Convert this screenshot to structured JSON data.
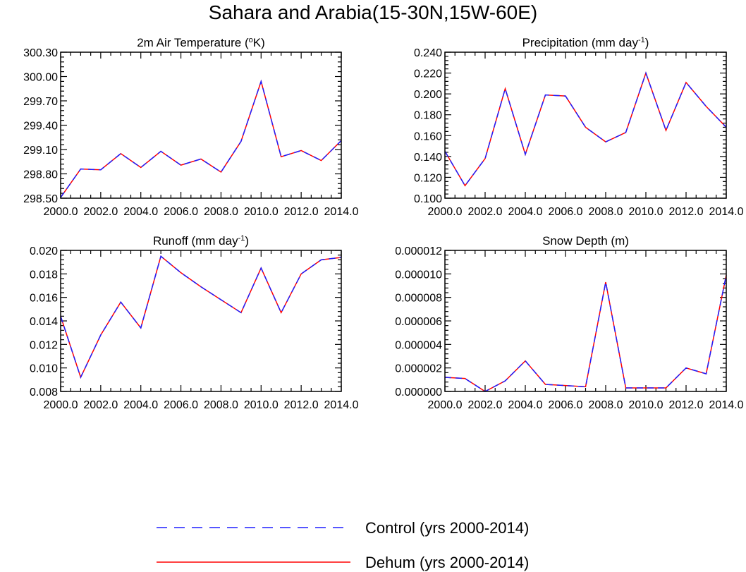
{
  "figure_title": "Sahara and Arabia(15-30N,15W-60E)",
  "legend": [
    {
      "label": "Control (yrs 2000-2014)",
      "color": "#1e1eff",
      "style": "dashed"
    },
    {
      "label": "Dehum (yrs 2000-2014)",
      "color": "#ff0000",
      "style": "solid"
    }
  ],
  "chart_data": [
    {
      "type": "line",
      "title": "2m Air Temperature (oK)",
      "title_parts": {
        "pre": "2m Air Temperature (",
        "sup": "o",
        "post": "K)"
      },
      "x": [
        2000,
        2001,
        2002,
        2003,
        2004,
        2005,
        2006,
        2007,
        2008,
        2009,
        2010,
        2011,
        2012,
        2013,
        2014
      ],
      "xlim": [
        2000,
        2014
      ],
      "xticks": [
        "2000.0",
        "2002.0",
        "2004.0",
        "2006.0",
        "2008.0",
        "2010.0",
        "2012.0",
        "2014.0"
      ],
      "ylim": [
        298.5,
        300.4
      ],
      "yticks": [
        "298.50",
        "298.80",
        "299.10",
        "299.40",
        "299.70",
        "300.00",
        "300.30"
      ],
      "series": [
        {
          "name": "Control (yrs 2000-2014)",
          "values": [
            298.51,
            298.88,
            298.87,
            299.08,
            298.9,
            299.11,
            298.93,
            299.01,
            298.84,
            299.24,
            300.02,
            299.04,
            299.12,
            298.99,
            299.25
          ]
        },
        {
          "name": "Dehum (yrs 2000-2014)",
          "values": [
            298.51,
            298.88,
            298.87,
            299.08,
            298.9,
            299.11,
            298.93,
            299.01,
            298.84,
            299.24,
            300.02,
            299.04,
            299.12,
            298.99,
            299.25
          ]
        }
      ]
    },
    {
      "type": "line",
      "title": "Precipitation (mm day-1)",
      "title_parts": {
        "pre": "Precipitation (mm day",
        "sup": "-1",
        "post": ")"
      },
      "x": [
        2000,
        2001,
        2002,
        2003,
        2004,
        2005,
        2006,
        2007,
        2008,
        2009,
        2010,
        2011,
        2012,
        2013,
        2014
      ],
      "xlim": [
        2000,
        2014
      ],
      "xticks": [
        "2000.0",
        "2002.0",
        "2004.0",
        "2006.0",
        "2008.0",
        "2010.0",
        "2012.0",
        "2014.0"
      ],
      "ylim": [
        0.1,
        0.24
      ],
      "yticks": [
        "0.100",
        "0.120",
        "0.140",
        "0.160",
        "0.180",
        "0.200",
        "0.220",
        "0.240"
      ],
      "series": [
        {
          "name": "Control (yrs 2000-2014)",
          "values": [
            0.145,
            0.112,
            0.138,
            0.205,
            0.142,
            0.199,
            0.198,
            0.168,
            0.154,
            0.163,
            0.22,
            0.165,
            0.211,
            0.188,
            0.168
          ]
        },
        {
          "name": "Dehum (yrs 2000-2014)",
          "values": [
            0.145,
            0.112,
            0.138,
            0.205,
            0.142,
            0.199,
            0.198,
            0.168,
            0.154,
            0.163,
            0.22,
            0.165,
            0.211,
            0.188,
            0.168
          ]
        }
      ]
    },
    {
      "type": "line",
      "title": "Runoff (mm day-1)",
      "title_parts": {
        "pre": "Runoff (mm day",
        "sup": "-1",
        "post": ")"
      },
      "x": [
        2000,
        2001,
        2002,
        2003,
        2004,
        2005,
        2006,
        2007,
        2008,
        2009,
        2010,
        2011,
        2012,
        2013,
        2014
      ],
      "xlim": [
        2000,
        2014
      ],
      "xticks": [
        "2000.0",
        "2002.0",
        "2004.0",
        "2006.0",
        "2008.0",
        "2010.0",
        "2012.0",
        "2014.0"
      ],
      "ylim": [
        0.008,
        0.02
      ],
      "yticks": [
        "0.008",
        "0.010",
        "0.012",
        "0.014",
        "0.016",
        "0.018",
        "0.020"
      ],
      "series": [
        {
          "name": "Control (yrs 2000-2014)",
          "values": [
            0.0144,
            0.0092,
            0.0128,
            0.0156,
            0.0134,
            0.0195,
            0.0181,
            0.0169,
            0.0158,
            0.0147,
            0.0185,
            0.0147,
            0.018,
            0.0192,
            0.0194
          ]
        },
        {
          "name": "Dehum (yrs 2000-2014)",
          "values": [
            0.0144,
            0.0092,
            0.0128,
            0.0156,
            0.0134,
            0.0195,
            0.0181,
            0.0169,
            0.0158,
            0.0147,
            0.0185,
            0.0147,
            0.018,
            0.0192,
            0.0194
          ]
        }
      ]
    },
    {
      "type": "line",
      "title": "Snow Depth (m)",
      "title_parts": {
        "pre": "Snow Depth (m)",
        "sup": "",
        "post": ""
      },
      "x": [
        2000,
        2001,
        2002,
        2003,
        2004,
        2005,
        2006,
        2007,
        2008,
        2009,
        2010,
        2011,
        2012,
        2013,
        2014
      ],
      "xlim": [
        2000,
        2014
      ],
      "xticks": [
        "2000.0",
        "2002.0",
        "2004.0",
        "2006.0",
        "2008.0",
        "2010.0",
        "2012.0",
        "2014.0"
      ],
      "ylim": [
        0,
        1.2e-05
      ],
      "yticks": [
        "0.000000",
        "0.000002",
        "0.000004",
        "0.000006",
        "0.000008",
        "0.000010",
        "0.000012"
      ],
      "series": [
        {
          "name": "Control (yrs 2000-2014)",
          "values": [
            1.2e-06,
            1.1e-06,
            0.0,
            9e-07,
            2.6e-06,
            6e-07,
            5e-07,
            4e-07,
            9.3e-06,
            3e-07,
            3e-07,
            3e-07,
            2e-06,
            1.5e-06,
            9.9e-06
          ]
        },
        {
          "name": "Dehum (yrs 2000-2014)",
          "values": [
            1.2e-06,
            1.1e-06,
            0.0,
            9e-07,
            2.6e-06,
            6e-07,
            5e-07,
            4e-07,
            9.3e-06,
            3e-07,
            3e-07,
            3e-07,
            2e-06,
            1.5e-06,
            9.9e-06
          ]
        }
      ]
    }
  ]
}
